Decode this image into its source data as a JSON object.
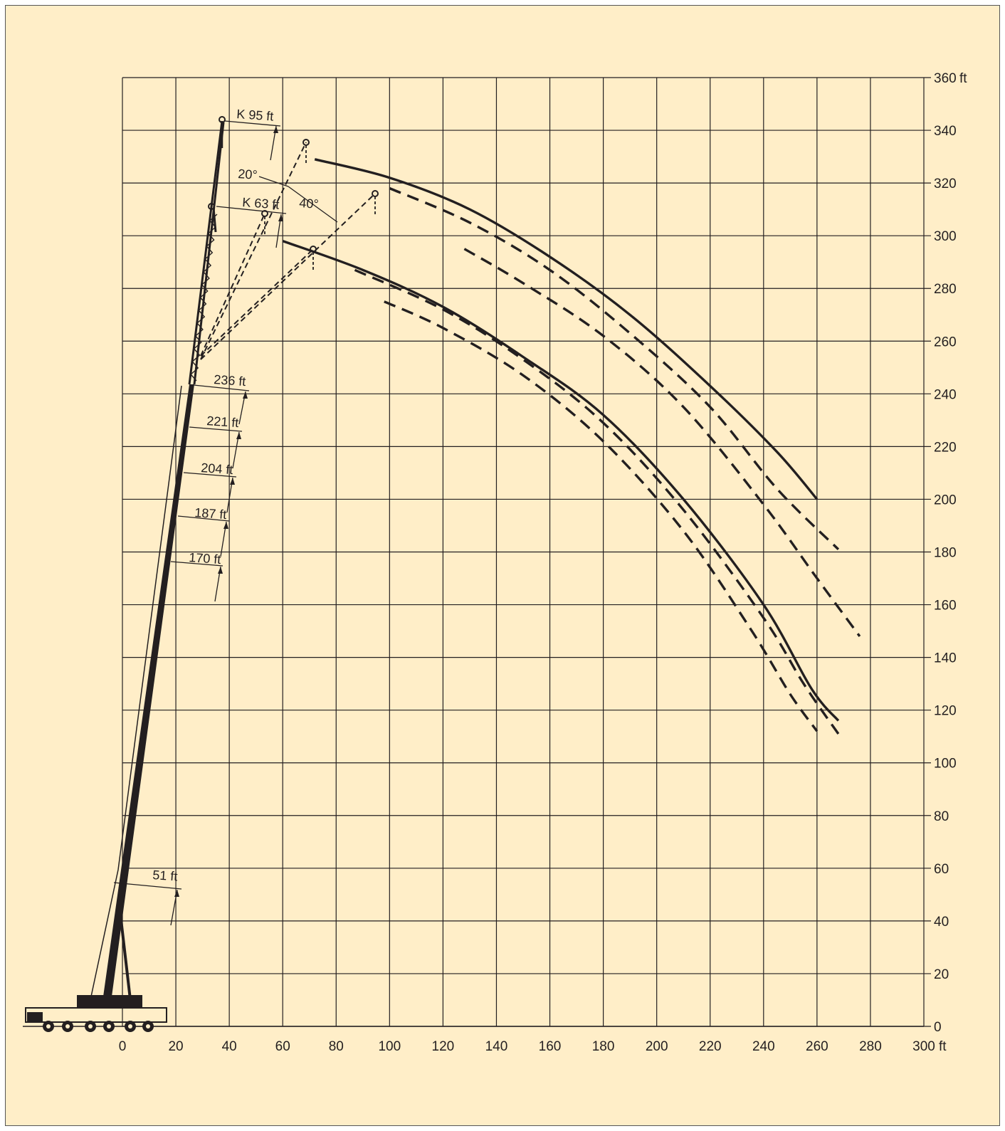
{
  "chart_data": {
    "type": "line",
    "title": "",
    "xlabel": "",
    "ylabel": "",
    "x_unit": "ft",
    "y_unit": "ft",
    "xlim": [
      0,
      300
    ],
    "ylim": [
      0,
      360
    ],
    "x_ticks": [
      0,
      20,
      40,
      60,
      80,
      100,
      120,
      140,
      160,
      180,
      200,
      220,
      240,
      260,
      280,
      300
    ],
    "x_tick_labels": [
      "0",
      "20",
      "40",
      "60",
      "80",
      "100",
      "120",
      "140",
      "160",
      "180",
      "200",
      "220",
      "240",
      "260",
      "280",
      "300"
    ],
    "y_ticks": [
      0,
      20,
      40,
      60,
      80,
      100,
      120,
      140,
      160,
      180,
      200,
      220,
      240,
      260,
      280,
      300,
      320,
      340,
      360
    ],
    "y_tick_labels": [
      "0",
      "20",
      "40",
      "60",
      "80",
      "100",
      "120",
      "140",
      "160",
      "180",
      "200",
      "220",
      "240",
      "260",
      "280",
      "300",
      "320",
      "340",
      "360"
    ],
    "grid": true,
    "grid_color": "#231f20",
    "background_color": "#ffeec8",
    "axis_position": "y-axis labels on right",
    "boom_length_labels": [
      "51 ft",
      "170 ft",
      "187 ft",
      "204 ft",
      "221 ft",
      "236 ft"
    ],
    "jib_labels": [
      "K 95 ft",
      "K 63 ft"
    ],
    "angle_labels": [
      "20°",
      "40°"
    ],
    "series": [
      {
        "style": "solid",
        "points": [
          [
            72,
            329
          ],
          [
            100,
            322
          ],
          [
            130,
            310
          ],
          [
            160,
            292
          ],
          [
            190,
            270
          ],
          [
            220,
            243
          ],
          [
            245,
            218
          ],
          [
            260,
            200
          ]
        ]
      },
      {
        "style": "dashed",
        "points": [
          [
            100,
            318
          ],
          [
            130,
            305
          ],
          [
            160,
            287
          ],
          [
            190,
            263
          ],
          [
            220,
            235
          ],
          [
            245,
            204
          ],
          [
            268,
            181
          ]
        ]
      },
      {
        "style": "dashed",
        "points": [
          [
            128,
            295
          ],
          [
            150,
            282
          ],
          [
            180,
            262
          ],
          [
            210,
            235
          ],
          [
            240,
            198
          ],
          [
            260,
            170
          ],
          [
            276,
            148
          ]
        ]
      },
      {
        "style": "solid",
        "points": [
          [
            60,
            298
          ],
          [
            90,
            287
          ],
          [
            120,
            273
          ],
          [
            150,
            254
          ],
          [
            180,
            232
          ],
          [
            210,
            200
          ],
          [
            240,
            160
          ],
          [
            258,
            128
          ],
          [
            268,
            116
          ]
        ]
      },
      {
        "style": "dashed",
        "points": [
          [
            87,
            287
          ],
          [
            120,
            272
          ],
          [
            150,
            253
          ],
          [
            180,
            229
          ],
          [
            210,
            196
          ],
          [
            240,
            155
          ],
          [
            255,
            130
          ],
          [
            268,
            111
          ]
        ]
      },
      {
        "style": "dashed",
        "points": [
          [
            98,
            275
          ],
          [
            120,
            265
          ],
          [
            150,
            247
          ],
          [
            180,
            222
          ],
          [
            210,
            188
          ],
          [
            235,
            151
          ],
          [
            250,
            126
          ],
          [
            260,
            112
          ]
        ]
      }
    ]
  }
}
